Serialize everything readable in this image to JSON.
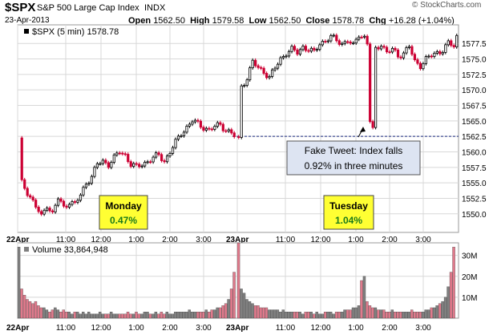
{
  "header": {
    "symbol": "$SPX",
    "name": "S&P 500 Large Cap Index",
    "exchange": "INDX",
    "date": "23-Apr-2013",
    "open_label": "Open",
    "open": "1562.50",
    "high_label": "High",
    "high": "1579.58",
    "low_label": "Low",
    "low": "1562.50",
    "close_label": "Close",
    "close": "1578.78",
    "chg_label": "Chg",
    "chg": "+16.28 (+1.04%)",
    "watermark": "© StockCharts.com"
  },
  "colors": {
    "up": "#000000",
    "down": "#cc0033",
    "volume_up": "#808080",
    "volume_down": "#e07a8c",
    "grid": "#d8d8d8",
    "annotation_fill": "#ffff33",
    "callout_fill": "#dde4f2"
  },
  "chart_data": [
    {
      "type": "candlestick",
      "legend": "$SPX (5 min) 1578.78",
      "ylim": [
        1547,
        1580.5
      ],
      "y_ticks": [
        "1550.0",
        "1552.5",
        "1555.0",
        "1557.5",
        "1560.0",
        "1562.5",
        "1565.0",
        "1567.5",
        "1570.0",
        "1572.5",
        "1575.0",
        "1577.5"
      ],
      "x_ticks": [
        "22Apr",
        "11:00",
        "12:00",
        "1:00",
        "2:00",
        "3:00",
        "23Apr",
        "11:00",
        "12:00",
        "1:00",
        "2:00",
        "3:00"
      ],
      "reference_line": 1562.5,
      "approx_path": [
        [
          0,
          1562.0
        ],
        [
          1,
          1555.0
        ],
        [
          3,
          1553.5
        ],
        [
          5,
          1552.0
        ],
        [
          8,
          1549.5
        ],
        [
          10,
          1551.5
        ],
        [
          12,
          1550.0
        ],
        [
          14,
          1552.5
        ],
        [
          16,
          1551.0
        ],
        [
          18,
          1552.0
        ],
        [
          20,
          1551.5
        ],
        [
          22,
          1553.0
        ],
        [
          24,
          1555.0
        ],
        [
          26,
          1556.0
        ],
        [
          28,
          1558.0
        ],
        [
          30,
          1558.5
        ],
        [
          32,
          1558.0
        ],
        [
          34,
          1559.0
        ],
        [
          36,
          1560.0
        ],
        [
          38,
          1559.5
        ],
        [
          40,
          1558.0
        ],
        [
          42,
          1557.5
        ],
        [
          44,
          1558.0
        ],
        [
          46,
          1558.5
        ],
        [
          48,
          1559.0
        ],
        [
          50,
          1559.5
        ],
        [
          52,
          1558.5
        ],
        [
          54,
          1560.0
        ],
        [
          56,
          1561.5
        ],
        [
          58,
          1563.0
        ],
        [
          60,
          1564.0
        ],
        [
          62,
          1565.0
        ],
        [
          64,
          1564.5
        ],
        [
          66,
          1564.0
        ],
        [
          68,
          1563.5
        ],
        [
          70,
          1564.0
        ],
        [
          72,
          1564.5
        ],
        [
          74,
          1563.5
        ],
        [
          76,
          1563.0
        ],
        [
          77,
          1562.5
        ],
        [
          78,
          1562.0
        ],
        [
          79,
          1570.5
        ],
        [
          81,
          1572.0
        ],
        [
          83,
          1574.5
        ],
        [
          85,
          1573.5
        ],
        [
          87,
          1573.0
        ],
        [
          89,
          1572.0
        ],
        [
          91,
          1573.5
        ],
        [
          93,
          1575.0
        ],
        [
          95,
          1576.0
        ],
        [
          97,
          1576.5
        ],
        [
          99,
          1576.0
        ],
        [
          101,
          1577.0
        ],
        [
          103,
          1576.5
        ],
        [
          105,
          1576.0
        ],
        [
          107,
          1577.5
        ],
        [
          109,
          1578.0
        ],
        [
          111,
          1578.5
        ],
        [
          113,
          1578.0
        ],
        [
          115,
          1577.5
        ],
        [
          117,
          1578.0
        ],
        [
          119,
          1577.0
        ],
        [
          121,
          1579.0
        ],
        [
          123,
          1578.5
        ],
        [
          124,
          1577.5
        ],
        [
          125,
          1565.0
        ],
        [
          126,
          1563.5
        ],
        [
          127,
          1576.5
        ],
        [
          129,
          1577.5
        ],
        [
          131,
          1576.0
        ],
        [
          133,
          1576.5
        ],
        [
          135,
          1575.5
        ],
        [
          137,
          1576.0
        ],
        [
          139,
          1577.0
        ],
        [
          141,
          1574.5
        ],
        [
          143,
          1574.0
        ],
        [
          145,
          1575.0
        ],
        [
          147,
          1575.5
        ],
        [
          149,
          1576.0
        ],
        [
          151,
          1576.5
        ],
        [
          153,
          1577.5
        ],
        [
          155,
          1577.0
        ],
        [
          156,
          1578.78
        ]
      ],
      "annotations": [
        {
          "title": "Monday",
          "value": "0.47%"
        },
        {
          "title": "Tuesday",
          "value": "1.04%"
        },
        {
          "text_line1": "Fake Tweet:  Index falls",
          "text_line2": "0.92% in three minutes"
        }
      ]
    },
    {
      "type": "bar",
      "legend": "Volume 33,864,948",
      "y_ticks": [
        "10M",
        "20M",
        "30M"
      ],
      "ylim": [
        0,
        36
      ],
      "x_ticks": [
        "22Apr",
        "11:00",
        "12:00",
        "1:00",
        "2:00",
        "3:00",
        "23Apr",
        "11:00",
        "12:00",
        "1:00",
        "2:00",
        "3:00"
      ],
      "unit": "M shares",
      "approx_values_22Apr": [
        34,
        14,
        11,
        9,
        8,
        7,
        8,
        6,
        5,
        5,
        4,
        3,
        4,
        5,
        4,
        3,
        4,
        3,
        3,
        2,
        3,
        3,
        2,
        3,
        2,
        3,
        2,
        2,
        2,
        3,
        2,
        2,
        2,
        3,
        2,
        2,
        2,
        2,
        2,
        3,
        2,
        2,
        3,
        2,
        2,
        3,
        3,
        2,
        2,
        3,
        2,
        3,
        2,
        3,
        2,
        2,
        3,
        3,
        3,
        3,
        3,
        4,
        3,
        3,
        3,
        3,
        3,
        4,
        3,
        4,
        4,
        5,
        5,
        6,
        7,
        9,
        14,
        22
      ],
      "approx_values_23Apr": [
        36,
        14,
        12,
        9,
        8,
        7,
        6,
        6,
        5,
        5,
        5,
        4,
        4,
        4,
        4,
        3,
        4,
        3,
        3,
        3,
        3,
        3,
        3,
        2,
        3,
        3,
        3,
        2,
        3,
        2,
        2,
        3,
        3,
        3,
        2,
        3,
        3,
        3,
        4,
        4,
        4,
        5,
        5,
        6,
        18,
        20,
        8,
        6,
        5,
        5,
        4,
        4,
        4,
        3,
        3,
        4,
        3,
        3,
        3,
        3,
        3,
        3,
        4,
        3,
        3,
        3,
        3,
        4,
        4,
        5,
        5,
        6,
        7,
        8,
        10,
        15,
        22,
        34
      ]
    }
  ]
}
